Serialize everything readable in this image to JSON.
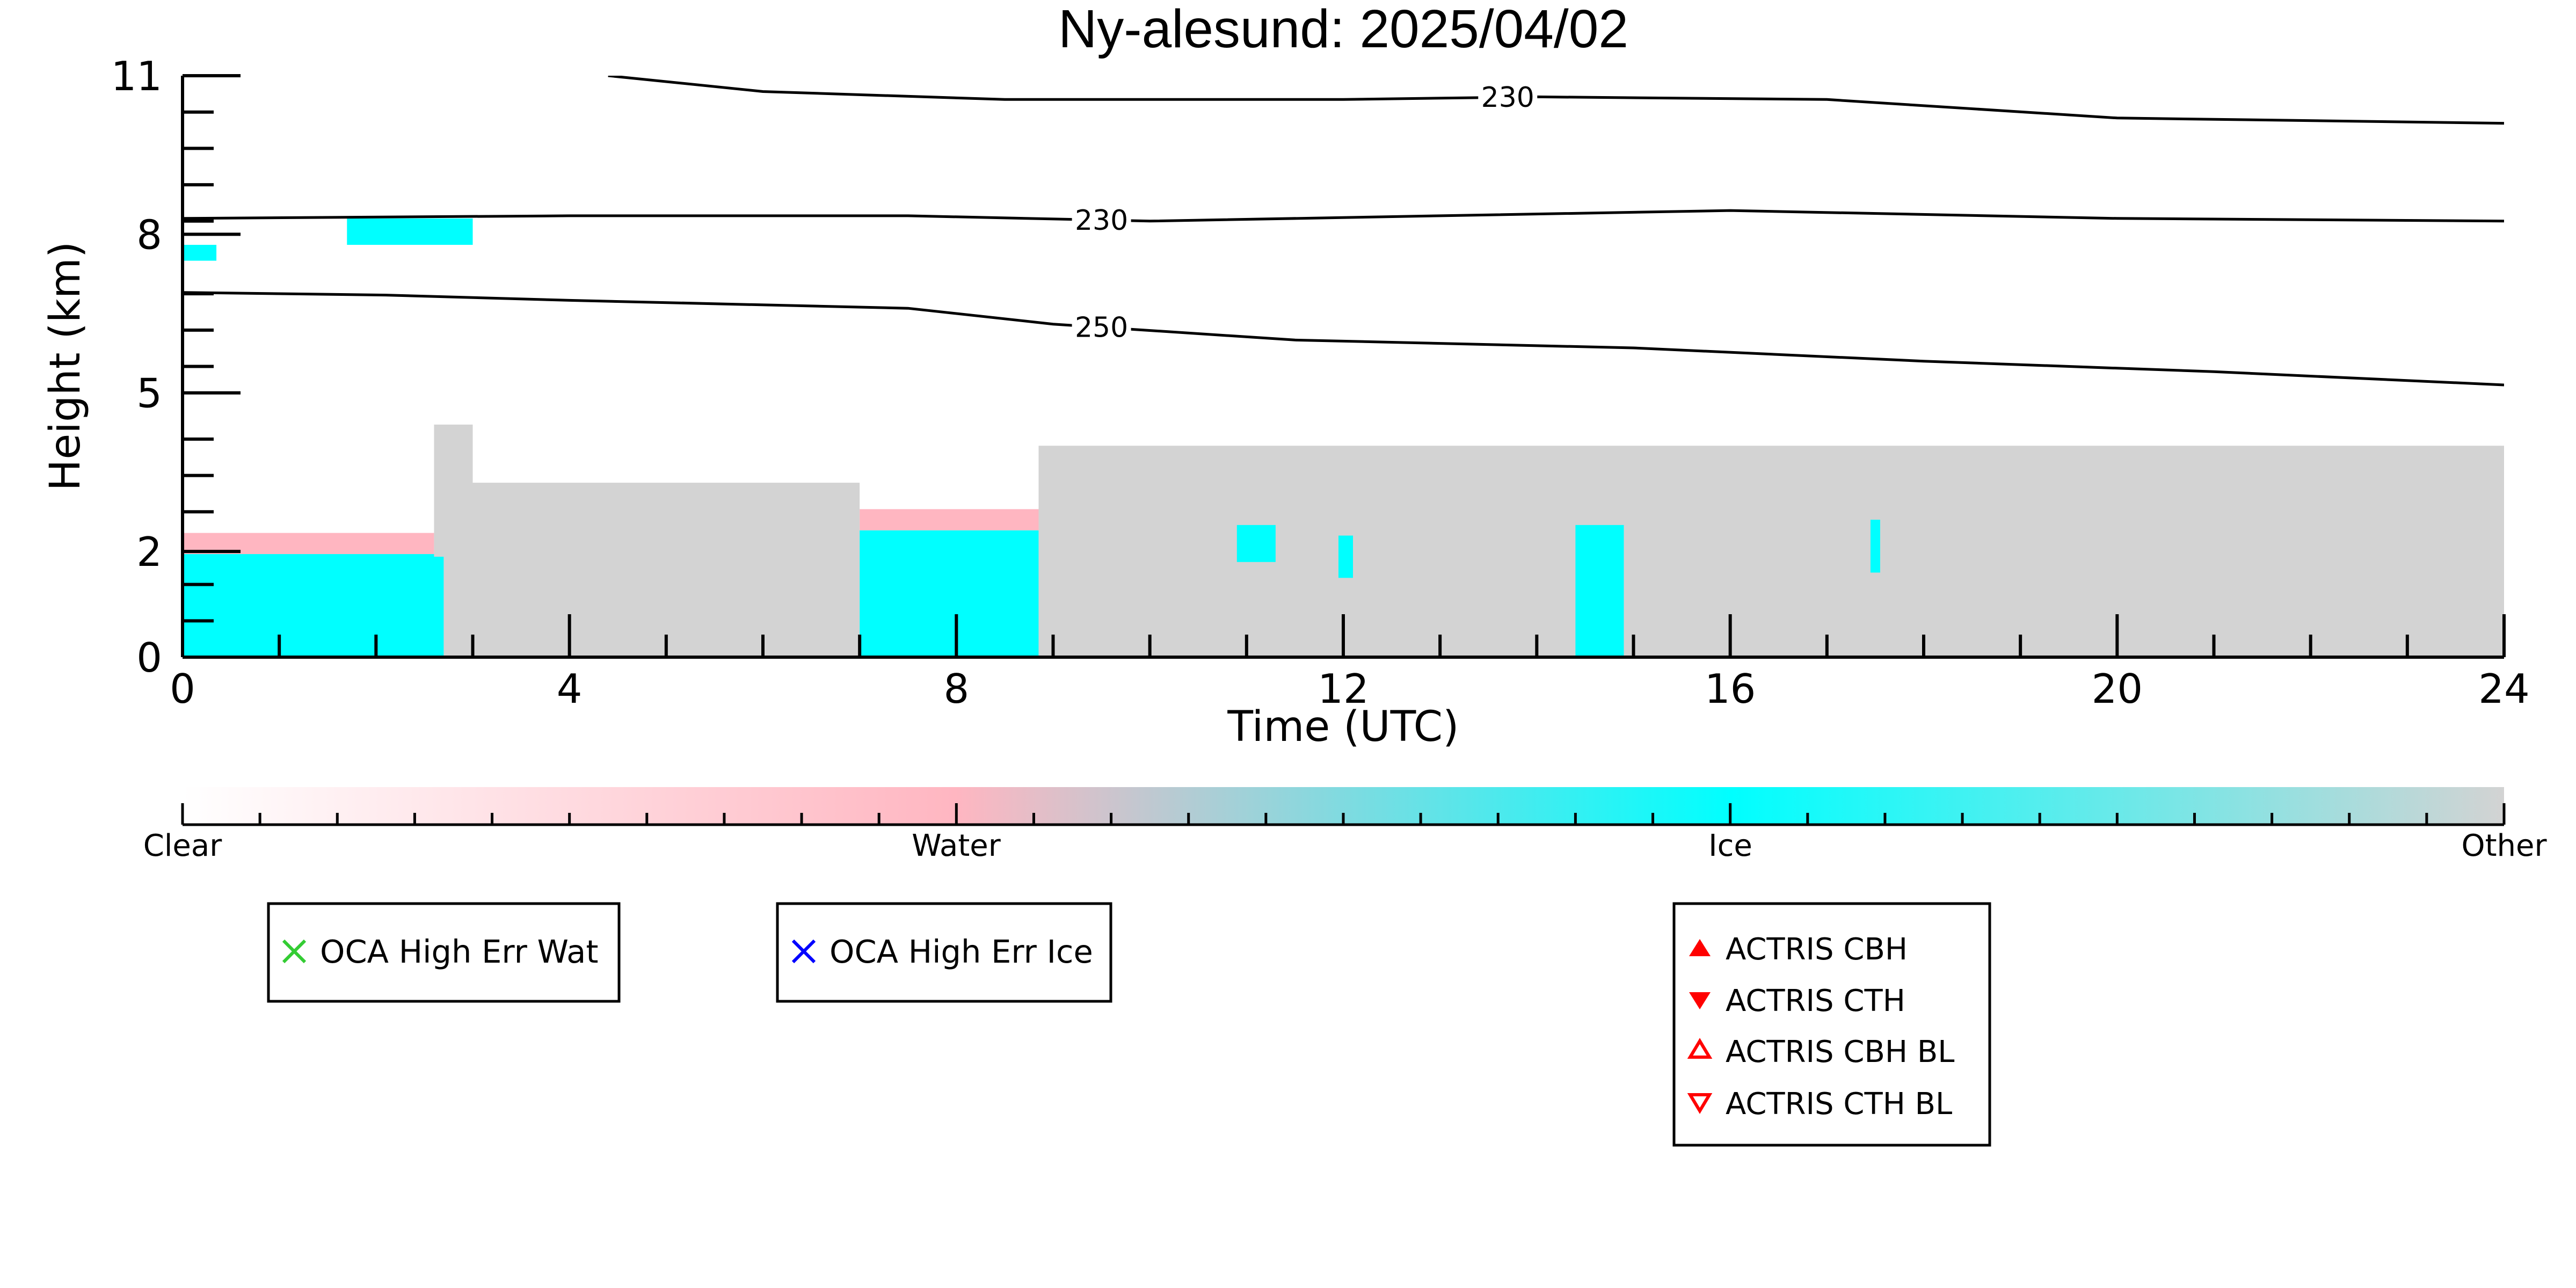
{
  "chart_data": {
    "type": "heatmap",
    "title": "Ny-alesund: 2025/04/02",
    "xlabel": "Time (UTC)",
    "ylabel": "Height (km)",
    "xlim": [
      0,
      24
    ],
    "ylim": [
      0,
      11
    ],
    "x_ticks": [
      0,
      4,
      8,
      12,
      16,
      20,
      24
    ],
    "x_tick_labels": [
      "0",
      "4",
      "8",
      "12",
      "16",
      "20",
      "24"
    ],
    "y_ticks": [
      0,
      2,
      5,
      8,
      11
    ],
    "y_tick_labels": [
      "0",
      "2",
      "5",
      "8",
      "11"
    ],
    "colorbar": {
      "labels": [
        "Clear",
        "Water",
        "Ice",
        "Other"
      ],
      "colors": [
        "#ffffff",
        "#ffb6c1",
        "#00ffff",
        "#d3d3d3"
      ]
    },
    "category_colors": {
      "water": "#ffb6c1",
      "ice": "#00ffff",
      "other": "#d3d3d3"
    },
    "regions": [
      {
        "category": "ice",
        "x0": 0.0,
        "x1": 2.7,
        "y0": 0.0,
        "y1": 1.95
      },
      {
        "category": "water",
        "x0": 0.0,
        "x1": 2.6,
        "y0": 1.95,
        "y1": 2.35
      },
      {
        "category": "other",
        "x0": 2.7,
        "x1": 7.0,
        "y0": 0.0,
        "y1": 3.3
      },
      {
        "category": "other",
        "x0": 2.6,
        "x1": 3.0,
        "y0": 1.9,
        "y1": 4.4
      },
      {
        "category": "ice",
        "x0": 7.0,
        "x1": 8.85,
        "y0": 0.0,
        "y1": 2.4
      },
      {
        "category": "water",
        "x0": 7.0,
        "x1": 8.85,
        "y0": 2.4,
        "y1": 2.8
      },
      {
        "category": "other",
        "x0": 8.85,
        "x1": 24.0,
        "y0": 0.0,
        "y1": 4.0
      },
      {
        "category": "ice",
        "x0": 10.9,
        "x1": 11.3,
        "y0": 1.8,
        "y1": 2.5
      },
      {
        "category": "ice",
        "x0": 11.95,
        "x1": 12.1,
        "y0": 1.5,
        "y1": 2.3
      },
      {
        "category": "ice",
        "x0": 14.4,
        "x1": 14.9,
        "y0": 0.0,
        "y1": 2.5
      },
      {
        "category": "ice",
        "x0": 17.45,
        "x1": 17.55,
        "y0": 1.6,
        "y1": 2.6
      },
      {
        "category": "ice",
        "x0": 1.7,
        "x1": 3.0,
        "y0": 7.8,
        "y1": 8.3
      },
      {
        "category": "ice",
        "x0": 0.0,
        "x1": 0.35,
        "y0": 7.5,
        "y1": 7.8
      }
    ],
    "contours": [
      {
        "label": "230",
        "label_x": 13.7,
        "points": [
          [
            4.4,
            11.0
          ],
          [
            6.0,
            10.7
          ],
          [
            8.5,
            10.55
          ],
          [
            12.0,
            10.55
          ],
          [
            14.0,
            10.6
          ],
          [
            17.0,
            10.55
          ],
          [
            20.0,
            10.2
          ],
          [
            24.0,
            10.1
          ]
        ]
      },
      {
        "label": "230",
        "label_x": 9.5,
        "points": [
          [
            0.0,
            8.3
          ],
          [
            4.0,
            8.35
          ],
          [
            7.5,
            8.35
          ],
          [
            10.0,
            8.25
          ],
          [
            13.0,
            8.35
          ],
          [
            16.0,
            8.45
          ],
          [
            20.0,
            8.3
          ],
          [
            24.0,
            8.25
          ]
        ]
      },
      {
        "label": "250",
        "label_x": 9.5,
        "points": [
          [
            0.0,
            6.9
          ],
          [
            2.1,
            6.85
          ],
          [
            4.0,
            6.75
          ],
          [
            7.5,
            6.6
          ],
          [
            9.0,
            6.3
          ],
          [
            11.5,
            6.0
          ],
          [
            15.0,
            5.85
          ],
          [
            18.0,
            5.6
          ],
          [
            21.0,
            5.4
          ],
          [
            24.0,
            5.15
          ]
        ]
      }
    ]
  },
  "legends": [
    {
      "entries": [
        {
          "symbol": "x",
          "color": "#33cc33",
          "label": "OCA High Err Wat"
        }
      ]
    },
    {
      "entries": [
        {
          "symbol": "x",
          "color": "#0000ff",
          "label": "OCA High Err Ice"
        }
      ]
    },
    {
      "entries": [
        {
          "symbol": "triangle-up-filled",
          "color": "#ff0000",
          "label": "ACTRIS CBH"
        },
        {
          "symbol": "triangle-down-filled",
          "color": "#ff0000",
          "label": "ACTRIS CTH"
        },
        {
          "symbol": "triangle-up-open",
          "color": "#ff0000",
          "label": "ACTRIS CBH BL"
        },
        {
          "symbol": "triangle-down-open",
          "color": "#ff0000",
          "label": "ACTRIS CTH BL"
        }
      ]
    }
  ]
}
